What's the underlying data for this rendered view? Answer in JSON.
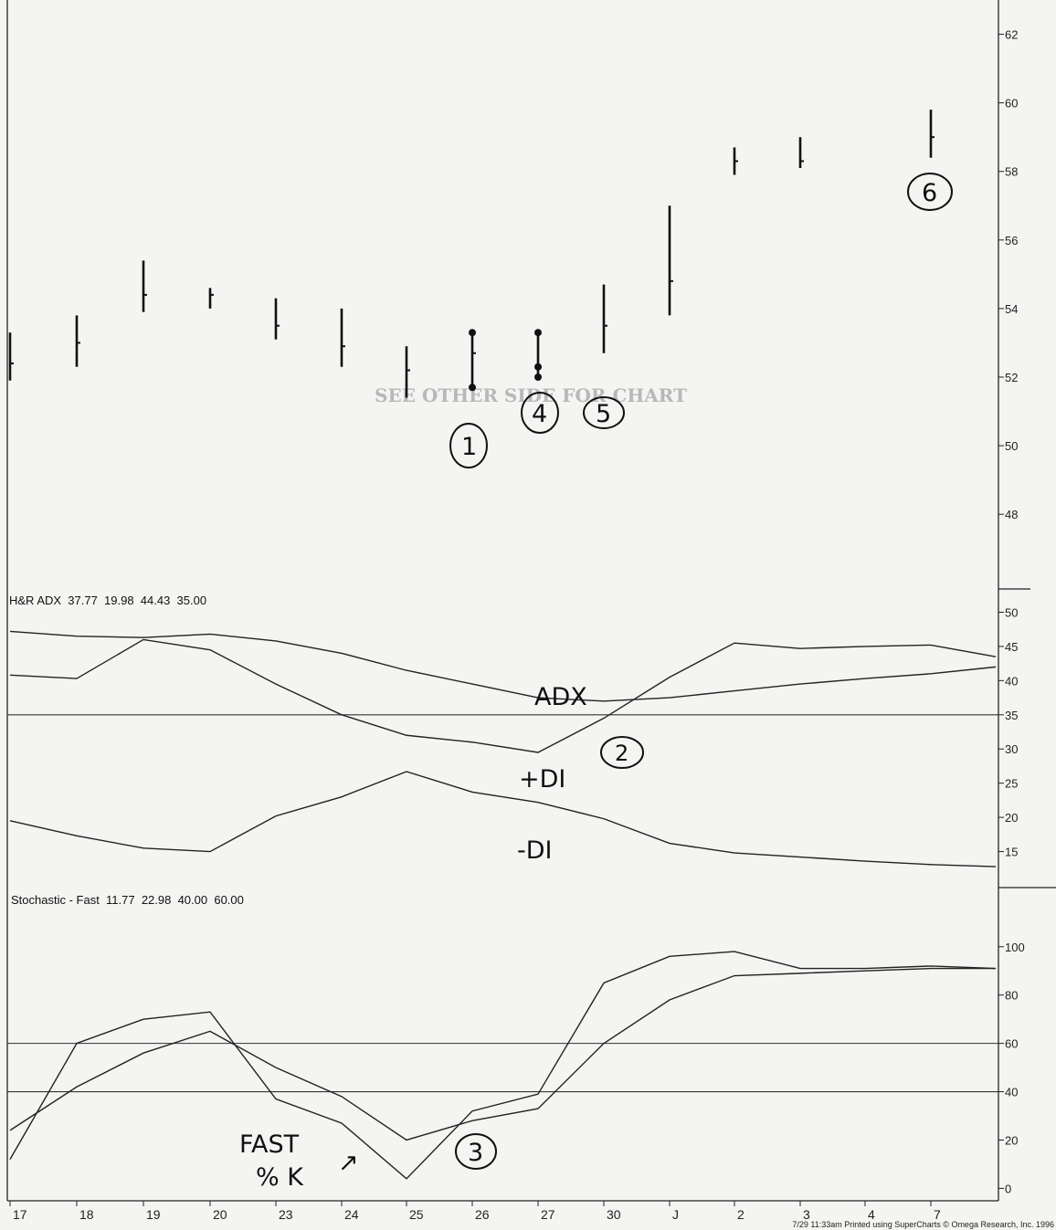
{
  "chart_data": [
    {
      "type": "ohlc",
      "name": "price",
      "categories": [
        "17",
        "18",
        "19",
        "20",
        "23",
        "24",
        "25",
        "26",
        "27",
        "30",
        "J",
        "2",
        "3",
        "4",
        "7"
      ],
      "bars": [
        {
          "x": "17",
          "high": 53.3,
          "low": 51.9,
          "close": 52.4
        },
        {
          "x": "18",
          "high": 53.8,
          "low": 52.3,
          "close": 53.0
        },
        {
          "x": "19",
          "high": 55.4,
          "low": 53.9,
          "close": 54.4
        },
        {
          "x": "20",
          "high": 54.6,
          "low": 54.0,
          "close": 54.4
        },
        {
          "x": "23",
          "high": 54.3,
          "low": 53.1,
          "close": 53.5
        },
        {
          "x": "24",
          "high": 54.0,
          "low": 52.3,
          "close": 52.9
        },
        {
          "x": "25",
          "high": 52.9,
          "low": 51.4,
          "close": 52.2
        },
        {
          "x": "26",
          "high": 53.3,
          "low": 51.7,
          "close": 52.7
        },
        {
          "x": "27",
          "high": 53.3,
          "low": 52.0,
          "close": 52.3
        },
        {
          "x": "30",
          "high": 54.7,
          "low": 52.7,
          "close": 53.5
        },
        {
          "x": "J",
          "high": 57.0,
          "low": 53.8,
          "close": 54.8
        },
        {
          "x": "2",
          "high": 58.7,
          "low": 57.9,
          "close": 58.3
        },
        {
          "x": "3",
          "high": 59.0,
          "low": 58.1,
          "close": 58.3
        },
        {
          "x": "7",
          "high": 59.8,
          "low": 58.4,
          "close": 59.0
        }
      ],
      "ylim": [
        46.7,
        63
      ],
      "yticks": [
        "48",
        "50",
        "52",
        "54",
        "56",
        "58",
        "60",
        "62"
      ],
      "ghost_text": "SEE OTHER SIDE FOR CHART"
    },
    {
      "type": "line",
      "name": "adx",
      "header": "H&R ADX  37.77  19.98  44.43  35.00",
      "x": [
        "17",
        "18",
        "19",
        "20",
        "23",
        "24",
        "25",
        "26",
        "27",
        "30",
        "J",
        "2",
        "3",
        "4",
        "7",
        "8"
      ],
      "series": [
        {
          "name": "ADX",
          "values": [
            47.2,
            46.5,
            46.3,
            46.8,
            45.8,
            44.0,
            41.5,
            39.5,
            37.5,
            37.0,
            37.5,
            38.5,
            39.5,
            40.3,
            41.0,
            42.0
          ]
        },
        {
          "name": "+DI",
          "values": [
            40.8,
            40.3,
            46.0,
            44.5,
            39.5,
            35.0,
            32.0,
            31.0,
            29.5,
            34.5,
            40.5,
            45.5,
            44.7,
            45.0,
            45.2,
            43.5
          ]
        },
        {
          "name": "-DI",
          "values": [
            19.5,
            17.3,
            15.5,
            15.0,
            20.2,
            23.0,
            26.7,
            23.7,
            22.2,
            19.8,
            16.2,
            14.8,
            14.2,
            13.6,
            13.1,
            12.8
          ]
        }
      ],
      "hlines": [
        35
      ],
      "ylim": [
        10,
        53
      ],
      "yticks": [
        "15",
        "20",
        "25",
        "30",
        "35",
        "40",
        "45",
        "50"
      ]
    },
    {
      "type": "line",
      "name": "stochastic",
      "header": "Stochastic - Fast  11.77  22.98  40.00  60.00",
      "x": [
        "17",
        "18",
        "19",
        "20",
        "23",
        "24",
        "25",
        "26",
        "27",
        "30",
        "J",
        "2",
        "3",
        "4",
        "7",
        "8"
      ],
      "series": [
        {
          "name": "Fast %K",
          "values": [
            12,
            60,
            70,
            73,
            37,
            27,
            4,
            32,
            39,
            85,
            96,
            98,
            91,
            91,
            92,
            91
          ]
        },
        {
          "name": "%D",
          "values": [
            24,
            42,
            56,
            65,
            50,
            38,
            20,
            28,
            33,
            60,
            78,
            88,
            89,
            90,
            91,
            91
          ]
        }
      ],
      "hlines": [
        40,
        60
      ],
      "ylim": [
        -4,
        112
      ],
      "yticks": [
        "0",
        "20",
        "40",
        "60",
        "80",
        "100"
      ]
    }
  ],
  "annotations": {
    "adx": "ADX",
    "plus_di": "+DI",
    "minus_di": "-DI",
    "fast_k_line1": "FAST",
    "fast_k_line2": "% K",
    "arrow": "↗",
    "circle_1": "1",
    "circle_2": "2",
    "circle_3": "3",
    "circle_4": "4",
    "circle_5": "5",
    "circle_6": "6"
  },
  "footer": "7/29 11:33am Printed using SuperCharts © Omega Research, Inc. 1996"
}
